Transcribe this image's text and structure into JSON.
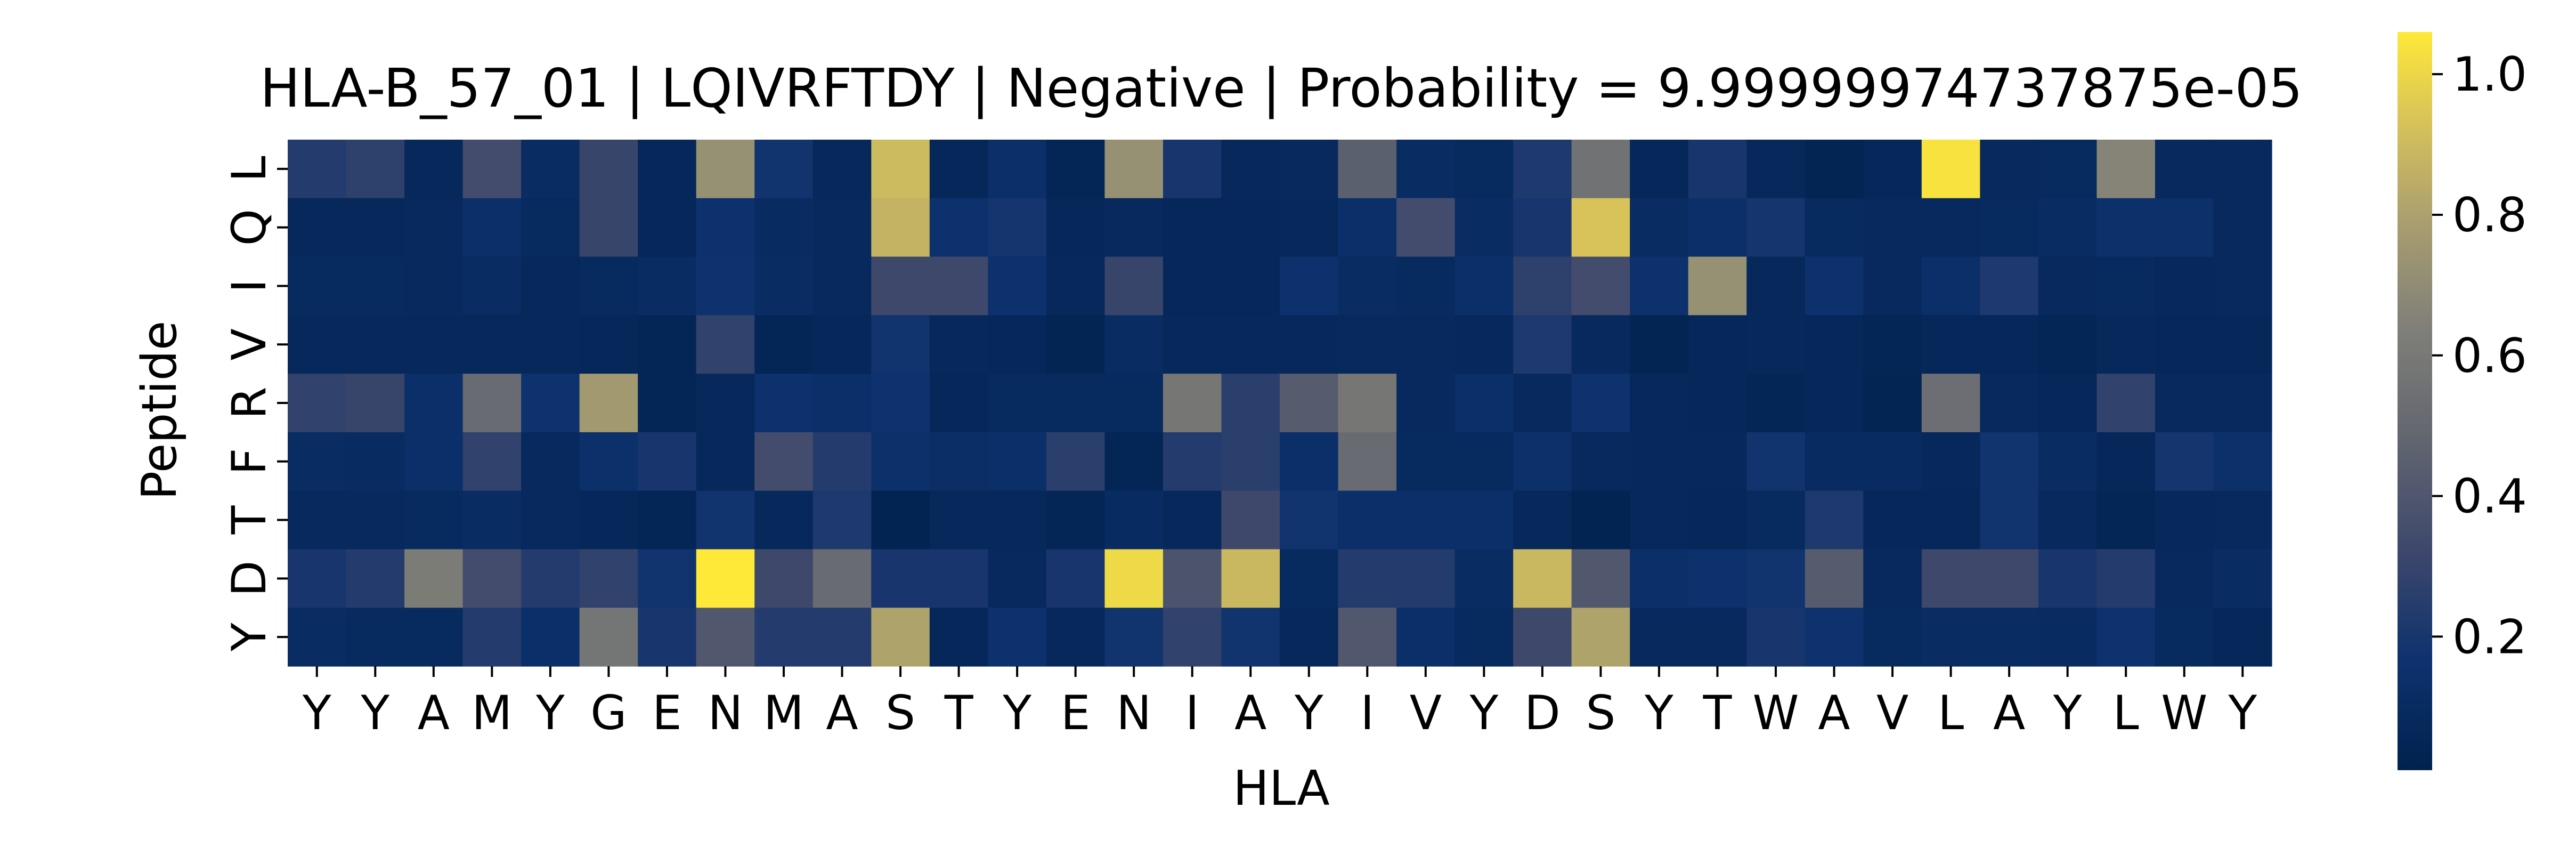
{
  "chart_data": {
    "type": "heatmap",
    "title": "HLA-B_57_01 | LQIVRFTDY | Negative | Probability = 9.99999974737875e-05",
    "xlabel": "HLA",
    "ylabel": "Peptide",
    "x_categories": [
      "Y",
      "Y",
      "A",
      "M",
      "Y",
      "G",
      "E",
      "N",
      "M",
      "A",
      "S",
      "T",
      "Y",
      "E",
      "N",
      "I",
      "A",
      "Y",
      "I",
      "V",
      "Y",
      "D",
      "S",
      "Y",
      "T",
      "W",
      "A",
      "V",
      "L",
      "A",
      "Y",
      "L",
      "W",
      "Y"
    ],
    "y_categories": [
      "L",
      "Q",
      "I",
      "V",
      "R",
      "F",
      "T",
      "D",
      "Y"
    ],
    "values": [
      [
        0.22,
        0.25,
        0.06,
        0.32,
        0.1,
        0.28,
        0.05,
        0.68,
        0.16,
        0.06,
        0.85,
        0.05,
        0.12,
        0.04,
        0.68,
        0.18,
        0.06,
        0.07,
        0.42,
        0.1,
        0.08,
        0.2,
        0.52,
        0.05,
        0.18,
        0.06,
        0.03,
        0.05,
        0.98,
        0.07,
        0.08,
        0.62,
        0.07,
        0.07
      ],
      [
        0.06,
        0.06,
        0.07,
        0.12,
        0.08,
        0.28,
        0.05,
        0.14,
        0.09,
        0.07,
        0.82,
        0.14,
        0.17,
        0.05,
        0.07,
        0.05,
        0.05,
        0.06,
        0.12,
        0.32,
        0.1,
        0.18,
        0.88,
        0.1,
        0.12,
        0.17,
        0.08,
        0.07,
        0.07,
        0.08,
        0.1,
        0.13,
        0.13,
        0.07
      ],
      [
        0.08,
        0.08,
        0.07,
        0.1,
        0.06,
        0.08,
        0.1,
        0.15,
        0.1,
        0.07,
        0.3,
        0.3,
        0.14,
        0.06,
        0.28,
        0.05,
        0.05,
        0.14,
        0.1,
        0.08,
        0.12,
        0.25,
        0.32,
        0.14,
        0.68,
        0.06,
        0.14,
        0.07,
        0.12,
        0.2,
        0.07,
        0.08,
        0.06,
        0.07
      ],
      [
        0.06,
        0.06,
        0.06,
        0.06,
        0.06,
        0.05,
        0.04,
        0.26,
        0.04,
        0.05,
        0.16,
        0.06,
        0.05,
        0.03,
        0.1,
        0.06,
        0.06,
        0.06,
        0.07,
        0.07,
        0.06,
        0.2,
        0.07,
        0.03,
        0.05,
        0.06,
        0.05,
        0.04,
        0.05,
        0.05,
        0.04,
        0.06,
        0.05,
        0.05
      ],
      [
        0.26,
        0.28,
        0.12,
        0.48,
        0.15,
        0.72,
        0.04,
        0.06,
        0.14,
        0.12,
        0.15,
        0.05,
        0.08,
        0.08,
        0.08,
        0.55,
        0.24,
        0.4,
        0.55,
        0.07,
        0.12,
        0.07,
        0.15,
        0.06,
        0.05,
        0.04,
        0.05,
        0.03,
        0.5,
        0.07,
        0.05,
        0.26,
        0.07,
        0.07
      ],
      [
        0.1,
        0.09,
        0.12,
        0.26,
        0.07,
        0.13,
        0.18,
        0.06,
        0.32,
        0.22,
        0.13,
        0.11,
        0.12,
        0.24,
        0.04,
        0.22,
        0.24,
        0.12,
        0.48,
        0.08,
        0.08,
        0.13,
        0.07,
        0.06,
        0.06,
        0.16,
        0.09,
        0.09,
        0.06,
        0.16,
        0.1,
        0.05,
        0.17,
        0.13
      ],
      [
        0.07,
        0.07,
        0.08,
        0.1,
        0.07,
        0.05,
        0.04,
        0.16,
        0.06,
        0.2,
        0.02,
        0.06,
        0.06,
        0.04,
        0.09,
        0.06,
        0.3,
        0.16,
        0.12,
        0.12,
        0.12,
        0.06,
        0.02,
        0.06,
        0.05,
        0.08,
        0.2,
        0.05,
        0.05,
        0.16,
        0.07,
        0.04,
        0.06,
        0.07
      ],
      [
        0.18,
        0.22,
        0.58,
        0.32,
        0.22,
        0.26,
        0.16,
        1.0,
        0.3,
        0.48,
        0.18,
        0.18,
        0.07,
        0.18,
        0.95,
        0.36,
        0.84,
        0.08,
        0.22,
        0.22,
        0.1,
        0.84,
        0.38,
        0.12,
        0.14,
        0.16,
        0.4,
        0.07,
        0.3,
        0.3,
        0.18,
        0.22,
        0.07,
        0.1
      ],
      [
        0.1,
        0.08,
        0.08,
        0.22,
        0.12,
        0.54,
        0.18,
        0.38,
        0.22,
        0.22,
        0.76,
        0.05,
        0.14,
        0.06,
        0.16,
        0.26,
        0.16,
        0.06,
        0.38,
        0.12,
        0.08,
        0.3,
        0.76,
        0.07,
        0.07,
        0.18,
        0.15,
        0.08,
        0.1,
        0.1,
        0.09,
        0.15,
        0.08,
        0.05
      ]
    ],
    "vmin": 0.0,
    "vmax": 1.0,
    "colormap": "cividis",
    "colorbar": {
      "ticks": [
        0.2,
        0.4,
        0.6,
        0.8,
        1.0
      ],
      "tick_labels": [
        "0.2",
        "0.4",
        "0.6",
        "0.8",
        "1.0"
      ]
    },
    "grid": false
  }
}
